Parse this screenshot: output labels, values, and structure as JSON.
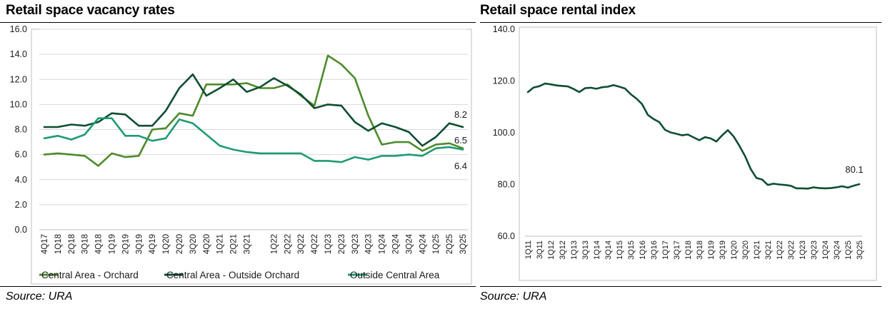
{
  "left_panel": {
    "title": "Retail space vacancy rates",
    "source": "Source: URA"
  },
  "right_panel": {
    "title": "Retail space rental index",
    "source": "Source: URA"
  },
  "colors": {
    "orchard": "#4e8a2c",
    "outside_orchard": "#0e4d32",
    "outside_central": "#1f9a74",
    "grid": "#d9d9d9",
    "axis": "#bfbfbf",
    "rental": "#0e4d32"
  },
  "chart_data": [
    {
      "type": "line",
      "title": "Retail space vacancy rates",
      "xlabel": "",
      "ylabel": "",
      "ylim": [
        0,
        16
      ],
      "y_ticks": [
        "0.0",
        "2.0",
        "4.0",
        "6.0",
        "8.0",
        "10.0",
        "12.0",
        "14.0",
        "16.0"
      ],
      "categories": [
        "4Q17",
        "1Q18",
        "2Q18",
        "3Q18",
        "4Q18",
        "1Q19",
        "2Q19",
        "3Q19",
        "4Q19",
        "1Q20",
        "2Q20",
        "3Q20",
        "4Q20",
        "1Q21",
        "2Q21",
        "3Q21",
        "4Q21",
        "1Q22",
        "2Q22",
        "3Q22",
        "4Q22",
        "1Q23",
        "2Q23",
        "3Q23",
        "4Q23",
        "1Q24",
        "2Q24",
        "3Q24",
        "4Q24",
        "1Q25",
        "2Q25",
        "3Q25"
      ],
      "tick_labels": [
        "4Q17",
        "1Q18",
        "2Q18",
        "3Q18",
        "4Q18",
        "1Q19",
        "2Q19",
        "3Q19",
        "4Q19",
        "1Q20",
        "2Q20",
        "3Q20",
        "4Q20",
        "1Q21",
        "2Q21",
        "3Q21",
        "1Q22",
        "2Q22",
        "3Q22",
        "4Q22",
        "1Q23",
        "2Q23",
        "3Q23",
        "4Q23",
        "1Q24",
        "2Q24",
        "3Q24",
        "4Q24",
        "1Q25",
        "2Q25",
        "3Q25"
      ],
      "series": [
        {
          "name": "Central Area - Orchard",
          "color_key": "orchard",
          "values": [
            6.0,
            6.1,
            6.0,
            5.9,
            5.1,
            6.1,
            5.8,
            5.9,
            8.0,
            8.1,
            9.3,
            9.1,
            11.6,
            11.6,
            11.6,
            11.7,
            11.3,
            11.3,
            11.6,
            10.7,
            9.9,
            13.9,
            13.2,
            12.1,
            9.1,
            6.8,
            7.0,
            7.0,
            6.3,
            6.8,
            6.9,
            6.5
          ]
        },
        {
          "name": "Central Area - Outside Orchard",
          "color_key": "outside_orchard",
          "values": [
            8.2,
            8.2,
            8.4,
            8.3,
            8.6,
            9.3,
            9.2,
            8.3,
            8.3,
            9.5,
            11.3,
            12.4,
            10.7,
            11.3,
            12.0,
            11.0,
            11.4,
            12.1,
            11.5,
            10.8,
            9.7,
            10.0,
            9.9,
            8.6,
            7.9,
            8.5,
            8.2,
            7.8,
            6.7,
            7.4,
            8.5,
            8.2
          ]
        },
        {
          "name": "Outside Central Area",
          "color_key": "outside_central",
          "values": [
            7.3,
            7.5,
            7.2,
            7.6,
            8.9,
            8.9,
            7.5,
            7.5,
            7.1,
            7.3,
            8.8,
            8.5,
            7.6,
            6.7,
            6.4,
            6.2,
            6.1,
            6.1,
            6.1,
            6.1,
            5.5,
            5.5,
            5.4,
            5.8,
            5.6,
            5.9,
            5.9,
            6.0,
            5.9,
            6.5,
            6.6,
            6.4
          ]
        }
      ],
      "end_labels": [
        "8.2",
        "6.5",
        "6.4"
      ],
      "legend": "bottom"
    },
    {
      "type": "line",
      "title": "Retail space rental index",
      "xlabel": "",
      "ylabel": "",
      "ylim": [
        60,
        140
      ],
      "y_ticks": [
        "60.0",
        "80.0",
        "100.0",
        "120.0",
        "140.0"
      ],
      "categories": [
        "1Q11",
        "2Q11",
        "3Q11",
        "4Q11",
        "1Q12",
        "2Q12",
        "3Q12",
        "4Q12",
        "1Q13",
        "2Q13",
        "3Q13",
        "4Q13",
        "1Q14",
        "2Q14",
        "3Q14",
        "4Q14",
        "1Q15",
        "2Q15",
        "3Q15",
        "4Q15",
        "1Q16",
        "2Q16",
        "3Q16",
        "4Q16",
        "1Q17",
        "2Q17",
        "3Q17",
        "4Q17",
        "1Q18",
        "2Q18",
        "3Q18",
        "4Q18",
        "1Q19",
        "2Q19",
        "3Q19",
        "4Q19",
        "1Q20",
        "2Q20",
        "3Q20",
        "4Q20",
        "1Q21",
        "2Q21",
        "3Q21",
        "4Q21",
        "1Q22",
        "2Q22",
        "3Q22",
        "4Q22",
        "1Q23",
        "2Q23",
        "3Q23",
        "4Q23",
        "1Q24",
        "2Q24",
        "3Q24",
        "4Q24",
        "1Q25",
        "2Q25",
        "3Q25"
      ],
      "tick_labels": [
        "1Q11",
        "3Q11",
        "1Q12",
        "3Q12",
        "1Q13",
        "3Q13",
        "1Q14",
        "3Q14",
        "1Q15",
        "3Q15",
        "1Q16",
        "3Q16",
        "1Q17",
        "3Q17",
        "1Q18",
        "3Q18",
        "1Q19",
        "3Q19",
        "1Q20",
        "3Q20",
        "1Q21",
        "3Q21",
        "1Q22",
        "3Q22",
        "1Q23",
        "3Q23",
        "1Q24",
        "3Q24",
        "1Q25",
        "3Q25"
      ],
      "series": [
        {
          "name": "Retail space rental index",
          "color_key": "rental",
          "values": [
            115.7,
            117.5,
            118.0,
            119.0,
            118.7,
            118.3,
            118.1,
            117.9,
            116.9,
            115.7,
            117.2,
            117.4,
            117.0,
            117.6,
            117.8,
            118.4,
            117.8,
            117.1,
            114.9,
            113.2,
            111.0,
            106.9,
            105.3,
            104.1,
            101.1,
            100.1,
            99.6,
            99.0,
            99.3,
            98.2,
            97.1,
            98.3,
            97.8,
            96.6,
            99.0,
            101.0,
            98.6,
            95.0,
            91.0,
            86.0,
            82.5,
            81.9,
            79.8,
            80.3,
            80.0,
            79.8,
            79.5,
            78.5,
            78.5,
            78.4,
            78.9,
            78.6,
            78.5,
            78.6,
            78.9,
            79.3,
            78.8,
            79.5,
            80.1
          ]
        }
      ],
      "end_labels": [
        "80.1"
      ],
      "legend": "none"
    }
  ]
}
